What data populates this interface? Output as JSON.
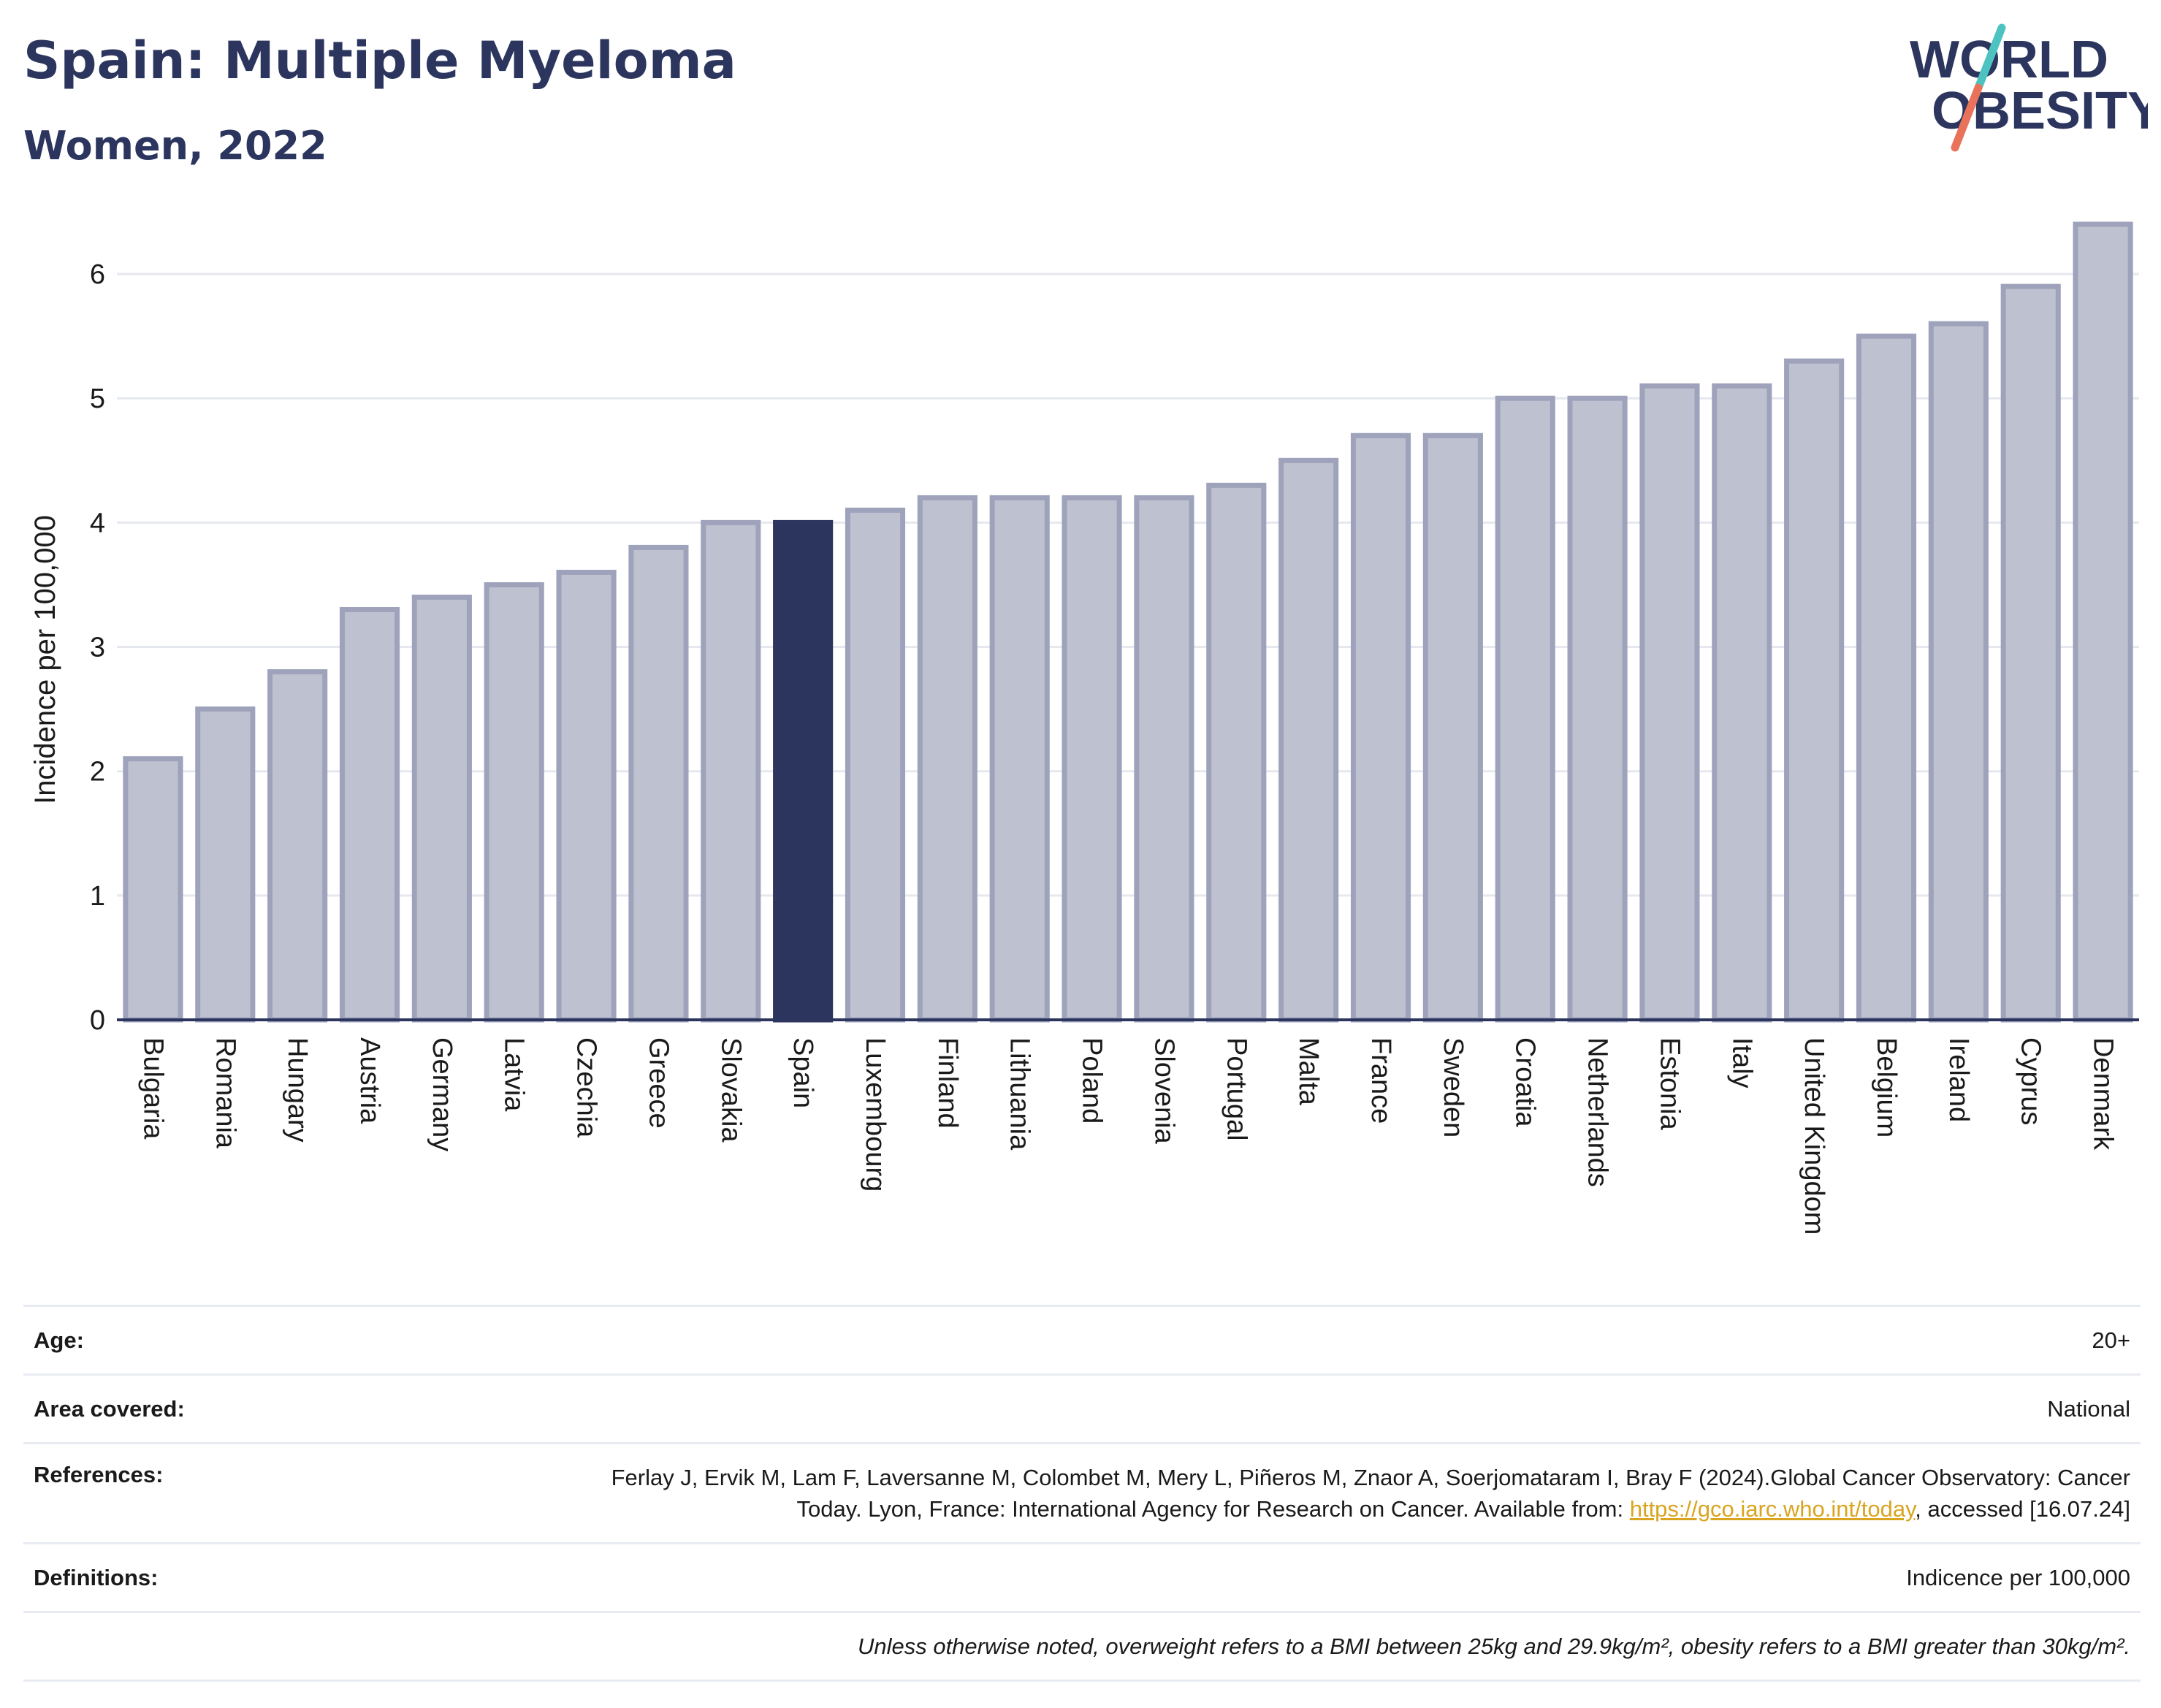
{
  "header": {
    "title": "Spain: Multiple Myeloma",
    "subtitle": "Women, 2022"
  },
  "logo": {
    "line1": "WORLD",
    "line2": "OBESITY",
    "colors": {
      "text": "#2b355e",
      "slash_top": "#4cc3c1",
      "slash_bottom": "#e8735a"
    }
  },
  "chart_data": {
    "type": "bar",
    "ylabel": "Incidence per 100,000",
    "xlabel": "",
    "ylim": [
      0,
      6.5
    ],
    "yticks": [
      0,
      1,
      2,
      3,
      4,
      5,
      6
    ],
    "grid": true,
    "highlight": "Spain",
    "colors": {
      "bar": "#bec1cf",
      "bar_edge": "#9ea3bb",
      "highlight": "#2b355e",
      "grid": "#e6e8ef",
      "axis": "#2b355e"
    },
    "categories": [
      "Bulgaria",
      "Romania",
      "Hungary",
      "Austria",
      "Germany",
      "Latvia",
      "Czechia",
      "Greece",
      "Slovakia",
      "Spain",
      "Luxembourg",
      "Finland",
      "Lithuania",
      "Poland",
      "Slovenia",
      "Portugal",
      "Malta",
      "France",
      "Sweden",
      "Croatia",
      "Netherlands",
      "Estonia",
      "Italy",
      "United Kingdom",
      "Belgium",
      "Ireland",
      "Cyprus",
      "Denmark"
    ],
    "values": [
      2.1,
      2.5,
      2.8,
      3.3,
      3.4,
      3.5,
      3.6,
      3.8,
      4.0,
      4.0,
      4.1,
      4.2,
      4.2,
      4.2,
      4.2,
      4.3,
      4.5,
      4.7,
      4.7,
      5.0,
      5.0,
      5.1,
      5.1,
      5.3,
      5.5,
      5.6,
      5.9,
      6.4
    ]
  },
  "info": {
    "age_label": "Age:",
    "age_value": "20+",
    "area_label": "Area covered:",
    "area_value": "National",
    "references_label": "References:",
    "references_text_1": "Ferlay J, Ervik M, Lam F, Laversanne M, Colombet M, Mery L, Piñeros M, Znaor A, Soerjomataram I, Bray F (2024).Global Cancer Observatory: Cancer Today. Lyon, France: International Agency for Research on Cancer. Available from: ",
    "references_link": "https://gco.iarc.who.int/today",
    "references_text_2": ", accessed [16.07.24]",
    "definitions_label": "Definitions:",
    "definitions_value": "Indicence per 100,000",
    "note": "Unless otherwise noted, overweight refers to a BMI between 25kg and 29.9kg/m², obesity refers to a BMI greater than 30kg/m²."
  }
}
